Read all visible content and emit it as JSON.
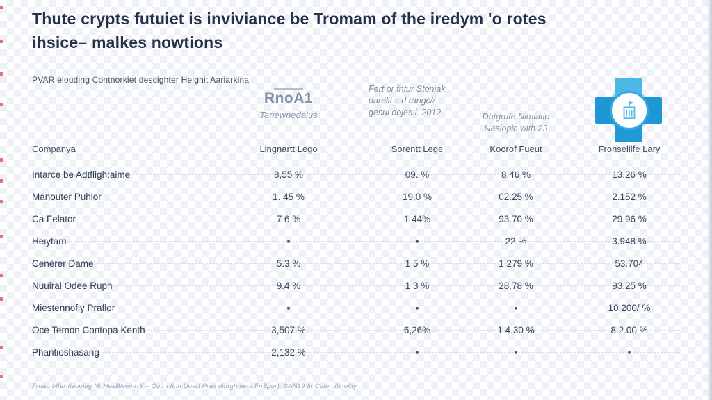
{
  "title": {
    "line1": "Thute crypts futuiet is inviviance be Tromam of the iredym 'o rotes",
    "line2": "ihsice– malkes nowtions"
  },
  "subtitle": "PVAR elouding Contnorkiet descighter Helgnit Aariarkina",
  "partners": {
    "logo": {
      "name": "RnoA1",
      "tagline": "Tanewnedalus"
    },
    "note1": {
      "l1": "Fert or fntur Stoniak",
      "l2": "oarelit s d rangc//",
      "l3": "gesui dojes:l. 2012"
    },
    "note2": {
      "l1": "Dhtgrufe Nimiatlo",
      "l2": "Nasiopic with 23"
    },
    "cross_logo_icon": "medical-cross-building-logo"
  },
  "table": {
    "headers": [
      "Companya",
      "Lingnartt Lego",
      "Sorentt Lege",
      "Koorof Fueut",
      "Fronselilfe Lary"
    ],
    "rows": [
      {
        "name": "Intarce be Adtfligh;aime",
        "values": [
          "8,55 %",
          "09. %",
          "8.46 %",
          "13.26 %"
        ]
      },
      {
        "name": "Manouter Puhlor",
        "values": [
          "1. 45 %",
          "19.0 %",
          "02.25 %",
          "2.152 %"
        ]
      },
      {
        "name": "Ca Felator",
        "values": [
          "7 6 %",
          "1 44%",
          "93.70 %",
          "29.96 %"
        ]
      },
      {
        "name": "Heiytam",
        "values": [
          "▪",
          "▪",
          "22 %",
          "3.948 %"
        ]
      },
      {
        "name": "Cenèrer Dame",
        "values": [
          "5.3 %",
          "1 5 %",
          "1.279 %",
          "53.704"
        ]
      },
      {
        "name": "Nuuiral Odee Ruph",
        "values": [
          "9.4 %",
          "1 3 %",
          "28.78 %",
          "93.25 %"
        ]
      },
      {
        "name": "Miestennofly Praflor",
        "values": [
          "▪",
          "▪",
          "▪",
          "10.200/ %"
        ]
      },
      {
        "name": "Oce Temon Contopa Kenth",
        "values": [
          "3,507 %",
          "6,26%",
          "1 4.30 %",
          "8.2.00 %"
        ]
      },
      {
        "name": "Phantioshasang",
        "values": [
          "2,132 %",
          "▪",
          "▪",
          "▪"
        ]
      }
    ]
  },
  "footer": "Fruao bffar fieooing Nr HeaBlownrrY – Cofrn finh Uoert Prax dinrghmem FriSpur). SAN19 In Cummibnoitty",
  "colors": {
    "accent_blue": "#1f97d4",
    "accent_blue_light": "#4cb8e6",
    "title_navy": "#25304a",
    "edge_mark_red": "#e25c5c"
  }
}
